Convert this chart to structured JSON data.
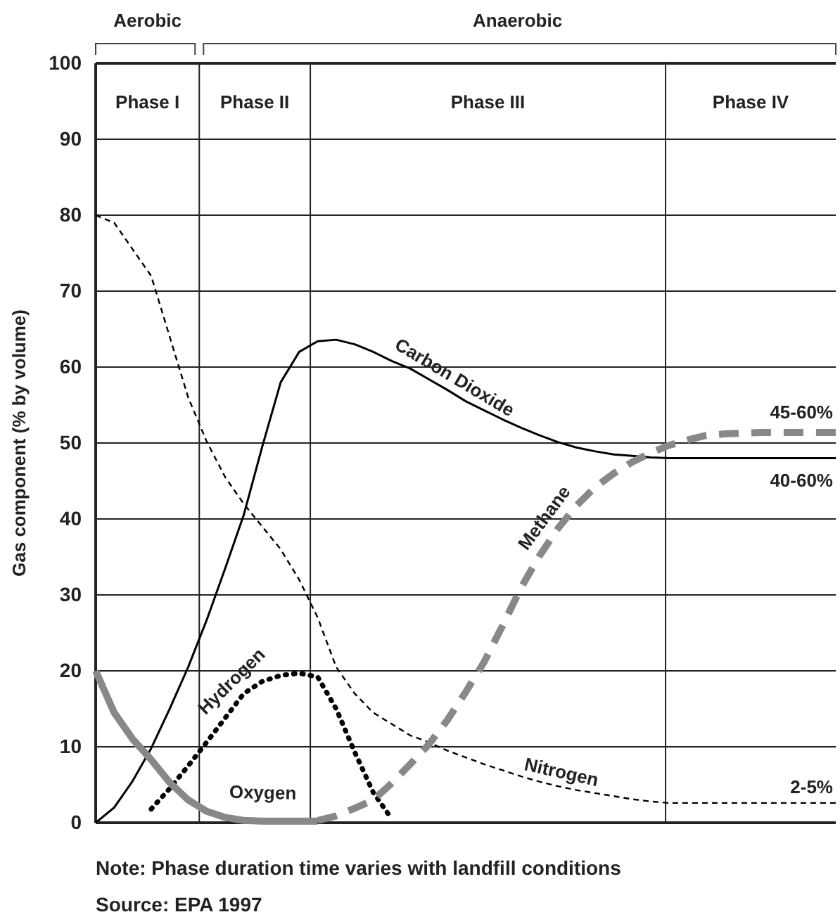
{
  "chart_data": {
    "type": "line",
    "ylabel": "Gas component (% by volume)",
    "categories": [
      null,
      null,
      null,
      null,
      null,
      null,
      null,
      null,
      null,
      null,
      null,
      null,
      null,
      null,
      null,
      null,
      null,
      null,
      null,
      null,
      null,
      null,
      null,
      null,
      null,
      null,
      null,
      null,
      null,
      null,
      null,
      null,
      null,
      null,
      null,
      null,
      null,
      null,
      null,
      null,
      null
    ],
    "ylim": [
      0,
      100
    ],
    "yticks": [
      0,
      10,
      20,
      30,
      40,
      50,
      60,
      70,
      80,
      90,
      100
    ],
    "tick_labels": "y",
    "grid": "y",
    "marker": "none",
    "series": [
      {
        "name": "Carbon Dioxide",
        "color": "#000000",
        "line_style": "solid",
        "values": [
          0,
          2,
          5.5,
          9.8,
          15,
          20.5,
          26.7,
          33.5,
          40.5,
          49.5,
          58,
          62,
          63.4,
          63.6,
          63,
          62,
          60.8,
          59.8,
          58.4,
          57,
          55.5,
          54.3,
          53.1,
          52,
          51,
          50.1,
          49.4,
          48.9,
          48.5,
          48.3,
          48.1,
          48,
          48,
          48,
          48,
          48,
          48,
          48,
          48,
          48,
          48
        ]
      },
      {
        "name": "Nitrogen",
        "color": "#000000",
        "line_style": "dashed",
        "values": [
          80,
          79,
          75.5,
          72,
          64,
          56,
          50.2,
          45.5,
          42,
          39,
          36,
          32,
          27,
          20.5,
          17,
          14.5,
          13,
          11.5,
          10.6,
          9.5,
          8.6,
          7.7,
          6.9,
          6.1,
          5.4,
          4.8,
          4.3,
          3.9,
          3.5,
          3.1,
          2.8,
          2.6,
          2.6,
          2.6,
          2.6,
          2.6,
          2.6,
          2.6,
          2.6,
          2.6,
          2.6
        ]
      },
      {
        "name": "Hydrogen",
        "color": "#000000",
        "line_style": "dotted",
        "values": [
          null,
          null,
          null,
          1.8,
          4.5,
          7.5,
          10.6,
          13.8,
          17,
          18.6,
          19.4,
          19.7,
          19.2,
          15,
          9.3,
          4,
          0.5,
          null,
          null,
          null,
          null,
          null,
          null,
          null,
          null,
          null,
          null,
          null,
          null,
          null,
          null,
          null,
          null,
          null,
          null,
          null,
          null,
          null,
          null,
          null,
          null
        ]
      },
      {
        "name": "Oxygen",
        "color": "#888888",
        "line_style": "solid",
        "values": [
          20,
          14.5,
          11,
          8.3,
          5.3,
          3,
          1.5,
          0.7,
          0.3,
          0.2,
          0.2,
          0.2,
          0.2,
          null,
          null,
          null,
          null,
          null,
          null,
          null,
          null,
          null,
          null,
          null,
          null,
          null,
          null,
          null,
          null,
          null,
          null,
          null,
          null,
          null,
          null,
          null,
          null,
          null,
          null,
          null,
          null
        ]
      },
      {
        "name": "Methane",
        "color": "#888888",
        "line_style": "dashed",
        "values": [
          null,
          null,
          null,
          null,
          null,
          null,
          null,
          null,
          null,
          null,
          null,
          null,
          0.3,
          0.9,
          1.9,
          3,
          5.2,
          7.7,
          10.3,
          13.5,
          17.2,
          21.2,
          26,
          31,
          35.2,
          38.8,
          41.8,
          44.2,
          46,
          47.5,
          48.7,
          49.7,
          50.4,
          51,
          51.2,
          51.3,
          51.4,
          51.4,
          51.4,
          51.4,
          51.4
        ]
      }
    ],
    "annotations": [
      "Aerobic",
      "Anaerobic",
      "Phase I",
      "Phase II",
      "Phase III",
      "Phase IV",
      {
        "text": "45-60%",
        "y": 51.4
      },
      {
        "text": "40-60%",
        "y": 48
      },
      {
        "text": "2-5%",
        "y": 2.6
      },
      "Note:  Phase duration time varies with landfill conditions",
      "Source: EPA 1997"
    ]
  }
}
